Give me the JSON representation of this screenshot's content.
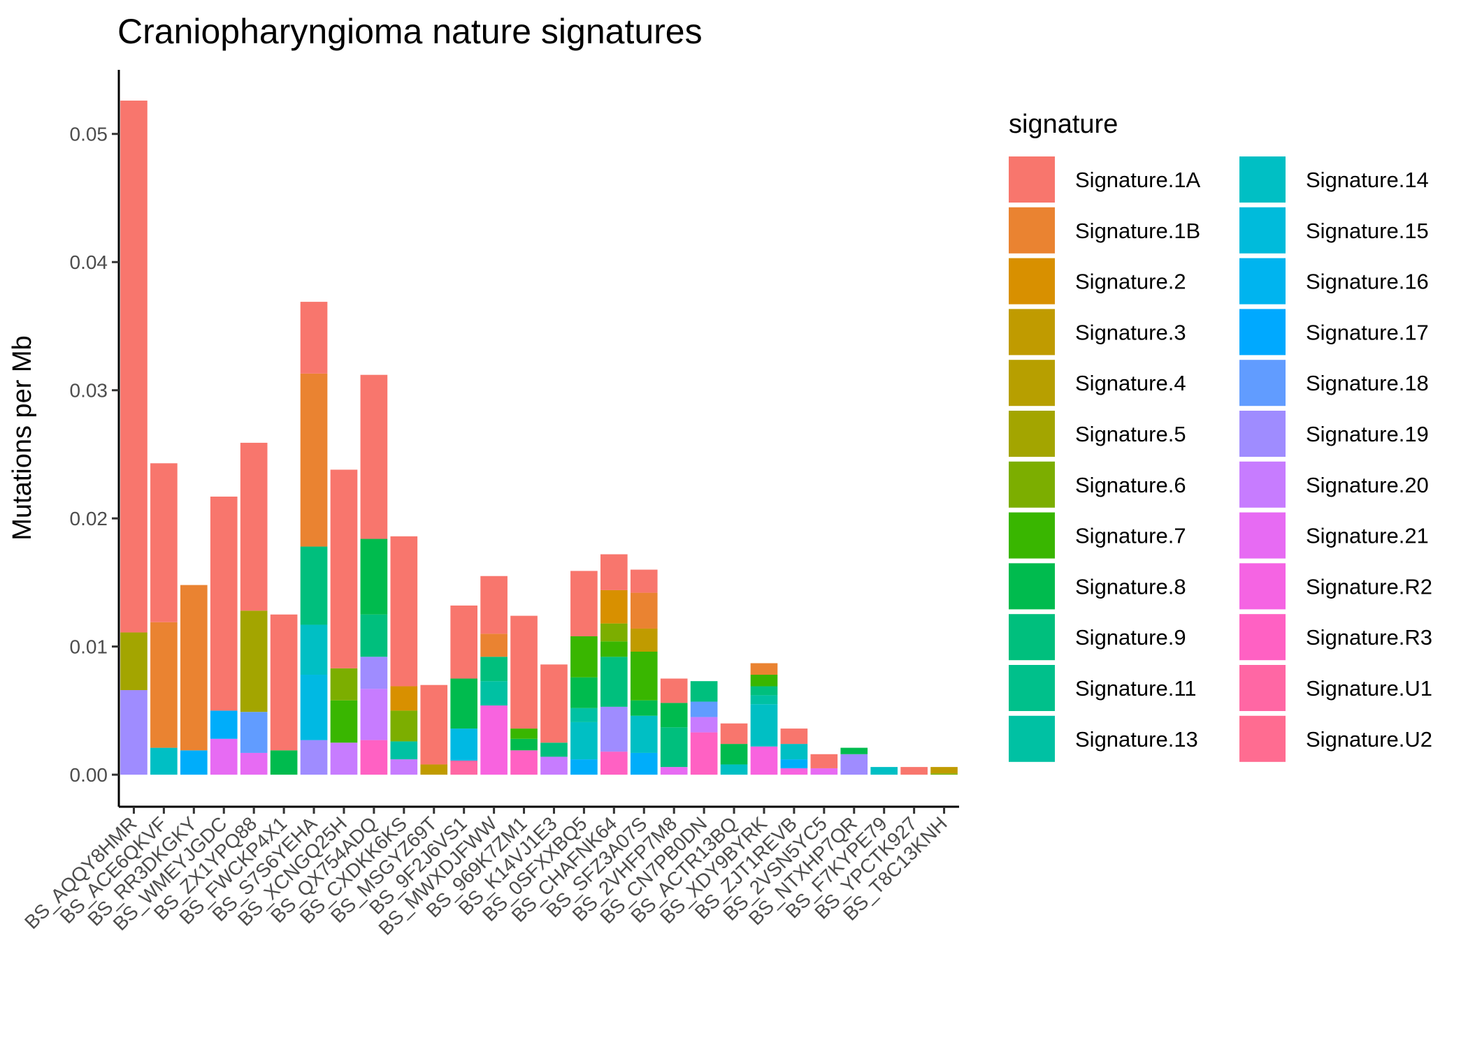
{
  "chart_data": {
    "type": "bar",
    "stacked": true,
    "title": "Craniopharyngioma nature signatures",
    "xlabel": "",
    "ylabel": "Mutations per Mb",
    "ylim": [
      -0.0025,
      0.055
    ],
    "yticks": [
      0.0,
      0.01,
      0.02,
      0.03,
      0.04,
      0.05
    ],
    "ytick_labels": [
      "0.00",
      "0.01",
      "0.02",
      "0.03",
      "0.04",
      "0.05"
    ],
    "grid": false,
    "legend": {
      "title": "signature",
      "placement": "right"
    },
    "categories": [
      "BS_AQQY8HMR",
      "BS_ACE6QKVF",
      "BS_RR3DKGKY",
      "BS_WMEYJGDC",
      "BS_ZX1YPQ88",
      "BS_FWCKP4X1",
      "BS_S7S6YEHA",
      "BS_XCNGQ25H",
      "BS_QX754ADQ",
      "BS_CXDKK6KS",
      "BS_MSGYZ69T",
      "BS_9F2J6VS1",
      "BS_MWXDJFWW",
      "BS_969K7ZM1",
      "BS_K14VJ1E3",
      "BS_0SFXXBQ5",
      "BS_CHAFNK64",
      "BS_SFZ3A07S",
      "BS_2VHFP7M8",
      "BS_CN7PB0DN",
      "BS_ACTR13BQ",
      "BS_XDY9BYRK",
      "BS_ZJT1REVB",
      "BS_2VSN5YC5",
      "BS_NTXHP7QR",
      "BS_F7KYPE79",
      "BS_YPCTK927",
      "BS_T8C13KNH"
    ],
    "series": [
      {
        "name": "Signature.1A",
        "color": "#F8766D",
        "values": [
          0.0415,
          0.0124,
          0,
          0.0167,
          0.0131,
          0.0106,
          0.0056,
          0.0155,
          0.0128,
          0.0117,
          0.0062,
          0.0057,
          0.0045,
          0.0088,
          0.0061,
          0.0051,
          0.0028,
          0.0018,
          0.0019,
          0,
          0.0016,
          0,
          0.0012,
          0.0011,
          0,
          0,
          0.0006,
          0
        ]
      },
      {
        "name": "Signature.1B",
        "color": "#EA8331",
        "values": [
          0,
          0.0098,
          0.0129,
          0,
          0,
          0,
          0.0135,
          0,
          0,
          0,
          0,
          0,
          0.0018,
          0,
          0,
          0,
          0,
          0.0028,
          0,
          0,
          0,
          0.0009,
          0,
          0,
          0,
          0,
          0,
          0
        ]
      },
      {
        "name": "Signature.2",
        "color": "#D89000",
        "values": [
          0,
          0,
          0,
          0,
          0,
          0,
          0,
          0,
          0,
          0.0019,
          0,
          0,
          0,
          0,
          0,
          0,
          0.0026,
          0,
          0,
          0,
          0,
          0,
          0,
          0,
          0,
          0,
          0,
          0
        ]
      },
      {
        "name": "Signature.3",
        "color": "#C09B00",
        "values": [
          0,
          0,
          0,
          0,
          0,
          0,
          0,
          0,
          0,
          0,
          0.0008,
          0,
          0,
          0,
          0,
          0,
          0,
          0.0018,
          0,
          0,
          0,
          0,
          0,
          0,
          0,
          0,
          0,
          0.0005
        ]
      },
      {
        "name": "Signature.4",
        "color": "#A3A500",
        "values": [
          0.0045,
          0,
          0,
          0,
          0.0079,
          0,
          0,
          0,
          0,
          0,
          0,
          0,
          0,
          0,
          0,
          0,
          0,
          0,
          0,
          0,
          0,
          0,
          0,
          0,
          0,
          0,
          0,
          0
        ]
      },
      {
        "name": "Signature.5",
        "color": "#7CAE00",
        "values": [
          0,
          0,
          0,
          0,
          0,
          0,
          0,
          0.0025,
          0,
          0.0024,
          0,
          0,
          0,
          0,
          0,
          0,
          0.0014,
          0,
          0,
          0,
          0,
          0,
          0,
          0,
          0,
          0,
          0,
          0.0001
        ]
      },
      {
        "name": "Signature.6",
        "color": "#39B600",
        "values": [
          0,
          0,
          0,
          0,
          0,
          0,
          0,
          0.0033,
          0,
          0,
          0,
          0,
          0,
          0.0008,
          0,
          0.0032,
          0.0012,
          0.0038,
          0,
          0,
          0,
          0.0009,
          0,
          0,
          0,
          0,
          0,
          0
        ]
      },
      {
        "name": "Signature.7",
        "color": "#00BB4E",
        "values": [
          0,
          0,
          0,
          0,
          0,
          0.0019,
          0,
          0,
          0.0059,
          0,
          0,
          0.0039,
          0,
          0.0009,
          0,
          0.0024,
          0,
          0.0012,
          0.0019,
          0,
          0.0016,
          0,
          0,
          0,
          0.0005,
          0,
          0,
          0
        ]
      },
      {
        "name": "Signature.8",
        "color": "#00BF7D",
        "values": [
          0,
          0,
          0,
          0,
          0,
          0,
          0.0061,
          0,
          0.0033,
          0,
          0,
          0,
          0.0019,
          0,
          0.0011,
          0,
          0.0039,
          0,
          0.0031,
          0.0016,
          0,
          0.0007,
          0,
          0,
          0,
          0,
          0,
          0
        ]
      },
      {
        "name": "Signature.9",
        "color": "#00C1A3",
        "values": [
          0,
          0,
          0,
          0,
          0,
          0,
          0,
          0,
          0,
          0.0014,
          0,
          0,
          0.0019,
          0,
          0,
          0.0011,
          0,
          0,
          0,
          0,
          0,
          0.0007,
          0,
          0,
          0,
          0,
          0,
          0
        ]
      },
      {
        "name": "Signature.11",
        "color": "#00BFC4",
        "values": [
          0,
          0.0021,
          0,
          0,
          0,
          0,
          0.0039,
          0,
          0,
          0,
          0,
          0,
          0,
          0,
          0,
          0.0029,
          0,
          0.0029,
          0,
          0,
          0.0008,
          0.0033,
          0.0012,
          0,
          0,
          0.0006,
          0,
          0
        ]
      },
      {
        "name": "Signature.13",
        "color": "#00B9E3",
        "values": [
          0,
          0,
          0,
          0,
          0,
          0,
          0.0051,
          0,
          0,
          0,
          0,
          0.0025,
          0,
          0,
          0,
          0,
          0,
          0,
          0,
          0,
          0,
          0,
          0,
          0,
          0,
          0,
          0,
          0
        ]
      },
      {
        "name": "Signature.14",
        "color": "#00ADFA",
        "values": [
          0,
          0,
          0.0019,
          0.0022,
          0,
          0,
          0,
          0,
          0,
          0,
          0,
          0,
          0,
          0,
          0,
          0.0012,
          0,
          0.0017,
          0,
          0,
          0,
          0,
          0.0007,
          0,
          0,
          0,
          0,
          0
        ]
      },
      {
        "name": "Signature.15",
        "color": "#619CFF",
        "values": [
          0,
          0,
          0,
          0,
          0.0032,
          0,
          0,
          0,
          0,
          0,
          0,
          0,
          0,
          0,
          0,
          0,
          0,
          0,
          0,
          0.0012,
          0,
          0,
          0,
          0,
          0,
          0,
          0,
          0
        ]
      },
      {
        "name": "Signature.16",
        "color": "#9F8CFF",
        "values": [
          0.0066,
          0,
          0,
          0,
          0,
          0,
          0.0027,
          0,
          0.0025,
          0,
          0,
          0,
          0,
          0,
          0,
          0,
          0.0035,
          0,
          0,
          0,
          0,
          0,
          0,
          0,
          0.0016,
          0,
          0,
          0
        ]
      },
      {
        "name": "Signature.17",
        "color": "#C77CFF",
        "values": [
          0,
          0,
          0,
          0,
          0,
          0,
          0,
          0.0025,
          0.004,
          0.0012,
          0,
          0,
          0,
          0,
          0.0014,
          0,
          0,
          0,
          0,
          0.0012,
          0,
          0,
          0,
          0,
          0,
          0,
          0,
          0
        ]
      },
      {
        "name": "Signature.18",
        "color": "#E76BF3",
        "values": [
          0,
          0,
          0,
          0.0028,
          0.0017,
          0,
          0,
          0,
          0,
          0,
          0,
          0,
          0,
          0,
          0,
          0,
          0,
          0,
          0.0006,
          0,
          0,
          0,
          0,
          0.0005,
          0,
          0,
          0,
          0
        ]
      },
      {
        "name": "Signature.19",
        "color": "#F863DF",
        "values": [
          0,
          0,
          0,
          0,
          0,
          0,
          0,
          0,
          0,
          0,
          0,
          0,
          0.0054,
          0,
          0,
          0,
          0,
          0,
          0,
          0,
          0,
          0.0022,
          0.0005,
          0,
          0,
          0,
          0,
          0
        ]
      },
      {
        "name": "Signature.20",
        "color": "#FF61C3",
        "values": [
          0,
          0,
          0,
          0,
          0,
          0,
          0,
          0,
          0.0027,
          0,
          0,
          0,
          0,
          0.0019,
          0,
          0,
          0.0018,
          0,
          0,
          0.0033,
          0,
          0,
          0,
          0,
          0,
          0,
          0,
          0
        ]
      },
      {
        "name": "Signature.21",
        "color": "#FF67A4",
        "values": [
          0,
          0,
          0,
          0,
          0,
          0,
          0,
          0,
          0,
          0,
          0,
          0.0011,
          0,
          0,
          0,
          0,
          0,
          0,
          0,
          0,
          0,
          0,
          0,
          0,
          0,
          0,
          0,
          0
        ]
      }
    ],
    "legend_entries": [
      {
        "name": "Signature.1A",
        "color": "#F8766D"
      },
      {
        "name": "Signature.1B",
        "color": "#EA8331"
      },
      {
        "name": "Signature.2",
        "color": "#D89000"
      },
      {
        "name": "Signature.3",
        "color": "#C09B00"
      },
      {
        "name": "Signature.4",
        "color": "#B79F00"
      },
      {
        "name": "Signature.5",
        "color": "#A3A500"
      },
      {
        "name": "Signature.6",
        "color": "#7CAE00"
      },
      {
        "name": "Signature.7",
        "color": "#39B600"
      },
      {
        "name": "Signature.8",
        "color": "#00BB4E"
      },
      {
        "name": "Signature.9",
        "color": "#00BF7D"
      },
      {
        "name": "Signature.11",
        "color": "#00C08B"
      },
      {
        "name": "Signature.13",
        "color": "#00C1A3"
      },
      {
        "name": "Signature.14",
        "color": "#00BFC4"
      },
      {
        "name": "Signature.15",
        "color": "#00BBDB"
      },
      {
        "name": "Signature.16",
        "color": "#00B4EF"
      },
      {
        "name": "Signature.17",
        "color": "#00A9FF"
      },
      {
        "name": "Signature.18",
        "color": "#619CFF"
      },
      {
        "name": "Signature.19",
        "color": "#9F8CFF"
      },
      {
        "name": "Signature.20",
        "color": "#C77CFF"
      },
      {
        "name": "Signature.21",
        "color": "#E76BF3"
      },
      {
        "name": "Signature.R2",
        "color": "#F564E3"
      },
      {
        "name": "Signature.R3",
        "color": "#FF61C3"
      },
      {
        "name": "Signature.U1",
        "color": "#FF67A4"
      },
      {
        "name": "Signature.U2",
        "color": "#FF6C91"
      }
    ]
  }
}
